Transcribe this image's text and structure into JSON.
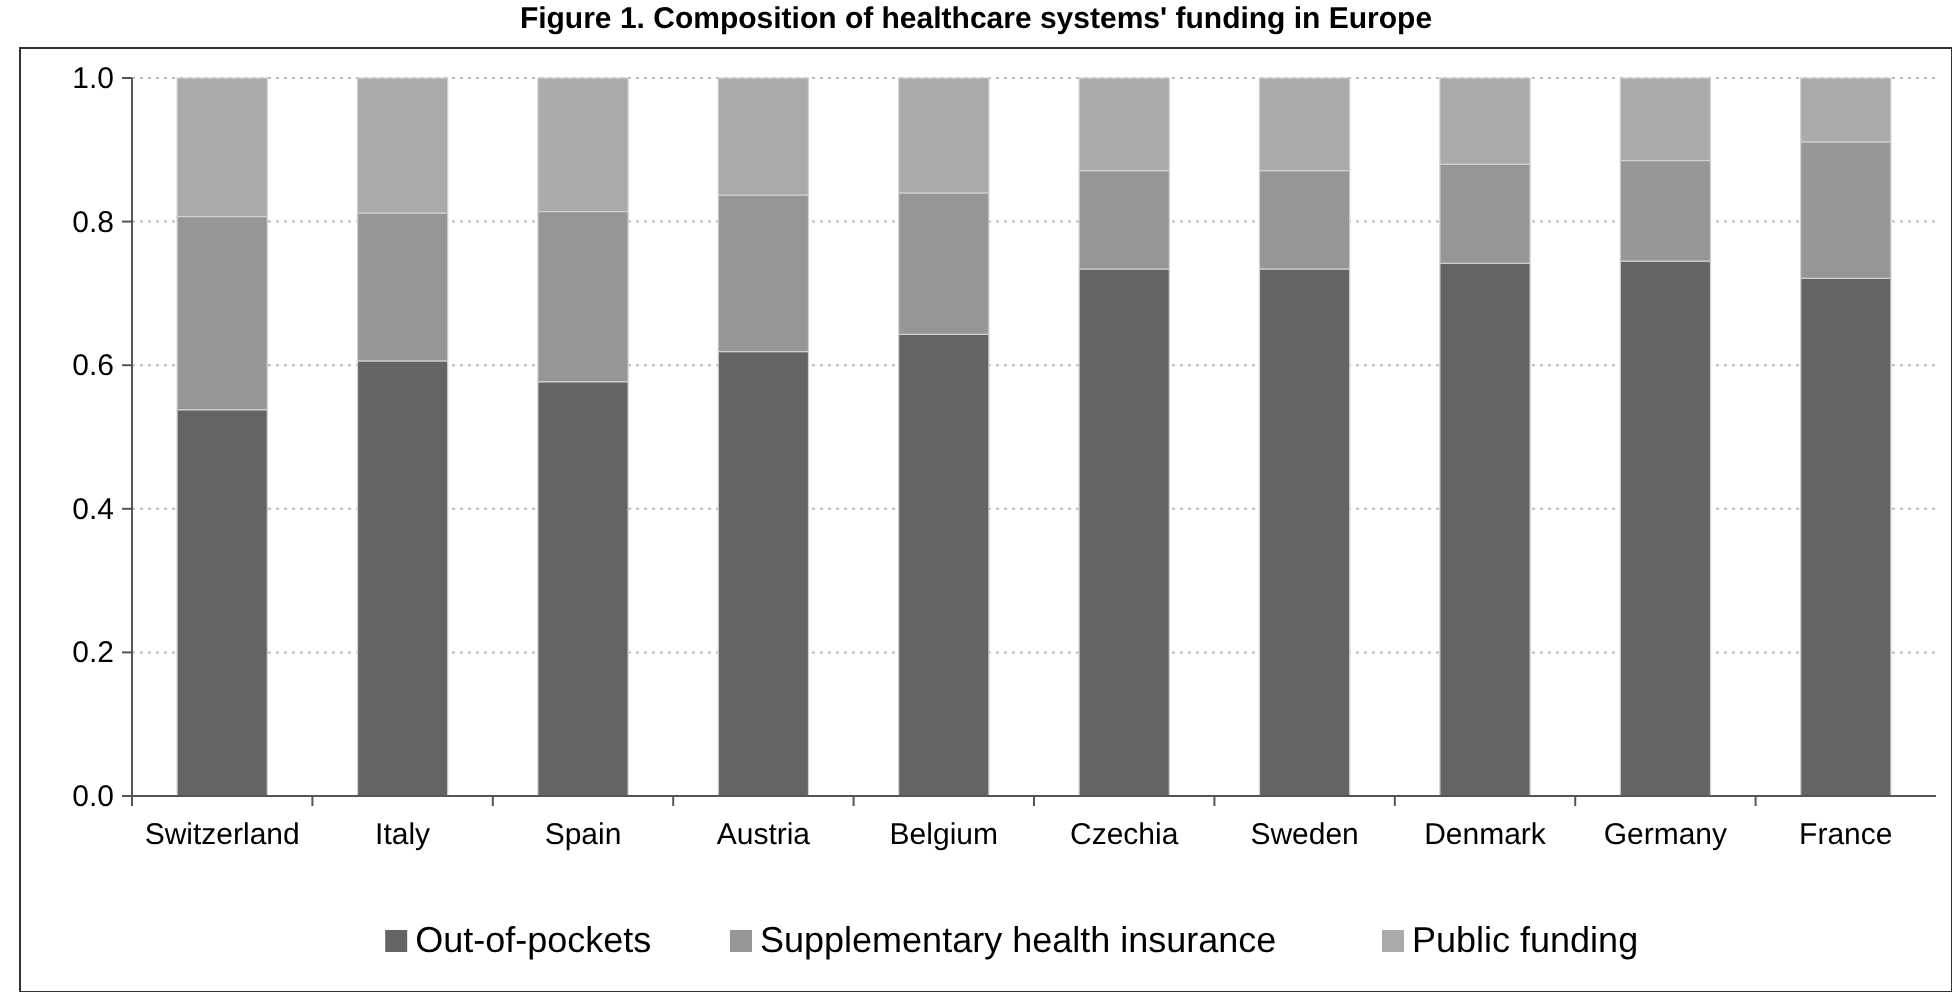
{
  "chart_data": {
    "type": "bar",
    "title": "Figure 1. Composition of healthcare systems' funding in Europe",
    "categories": [
      "Switzerland",
      "Italy",
      "Spain",
      "Austria",
      "Belgium",
      "Czechia",
      "Sweden",
      "Denmark",
      "Germany",
      "France"
    ],
    "stacked": true,
    "series": [
      {
        "name": "Out-of-pockets",
        "color": "#646464",
        "values": [
          0.538,
          0.606,
          0.577,
          0.619,
          0.643,
          0.734,
          0.734,
          0.742,
          0.745,
          0.721
        ]
      },
      {
        "name": "Supplementary health insurance",
        "color": "#969696",
        "values": [
          0.269,
          0.206,
          0.237,
          0.218,
          0.197,
          0.137,
          0.137,
          0.138,
          0.14,
          0.19
        ]
      },
      {
        "name": "Public funding",
        "color": "#aaaaaa",
        "values": [
          0.193,
          0.188,
          0.186,
          0.163,
          0.16,
          0.129,
          0.129,
          0.12,
          0.115,
          0.089
        ]
      }
    ],
    "ylim": [
      0,
      1
    ],
    "yticks": [
      {
        "value": 0,
        "label": "0.0"
      },
      {
        "value": 0.2,
        "label": "0.2"
      },
      {
        "value": 0.4,
        "label": "0.4"
      },
      {
        "value": 0.6,
        "label": "0.6"
      },
      {
        "value": 0.8,
        "label": "0.8"
      },
      {
        "value": 1,
        "label": "1.0"
      }
    ],
    "grid": "y",
    "legend": "bottom"
  }
}
